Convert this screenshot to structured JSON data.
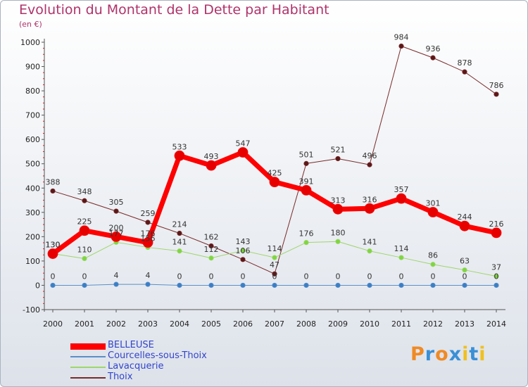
{
  "title": "Evolution du Montant de la Dette par Habitant",
  "subtitle": "(en €)",
  "logo": {
    "letters": [
      "P",
      "r",
      "o",
      "x",
      "i",
      "t",
      "i"
    ],
    "colors": [
      "#f08a24",
      "#3a8fd6",
      "#f08a24",
      "#3a8fd6",
      "#f0c020",
      "#3a8fd6",
      "#f0c020"
    ]
  },
  "chart_data": {
    "type": "line",
    "x": [
      "2000",
      "2001",
      "2002",
      "2003",
      "2004",
      "2005",
      "2006",
      "2007",
      "2008",
      "2009",
      "2010",
      "2011",
      "2012",
      "2013",
      "2014"
    ],
    "ylim": [
      -100,
      1000
    ],
    "yticks": [
      -100,
      0,
      100,
      200,
      300,
      400,
      500,
      600,
      700,
      800,
      900,
      1000
    ],
    "series": [
      {
        "name": "Thoix",
        "color": "#7a2a2a",
        "marker": "#5a1818",
        "width": 1,
        "r": 3.2,
        "values": [
          388,
          348,
          305,
          259,
          214,
          162,
          106,
          47,
          501,
          521,
          496,
          984,
          936,
          878,
          786
        ]
      },
      {
        "name": "Lavacquerie",
        "color": "#9ed66a",
        "marker": "#7ed640",
        "width": 1,
        "r": 3.2,
        "values": [
          130,
          110,
          177,
          156,
          141,
          112,
          143,
          114,
          176,
          180,
          141,
          114,
          86,
          63,
          37
        ]
      },
      {
        "name": "Courcelles-sous-Thoix",
        "color": "#5b8ec8",
        "marker": "#3a7fc6",
        "width": 1,
        "r": 3.2,
        "values": [
          0,
          0,
          4,
          4,
          0,
          0,
          0,
          0,
          0,
          0,
          0,
          0,
          0,
          0,
          0
        ]
      },
      {
        "name": "BELLEUSE",
        "color": "#ff0000",
        "marker": "#e60000",
        "width": 7,
        "r": 7,
        "values": [
          130,
          225,
          200,
          176,
          533,
          493,
          547,
          425,
          391,
          313,
          316,
          357,
          301,
          244,
          216
        ]
      }
    ],
    "legend_order": [
      "BELLEUSE",
      "Courcelles-sous-Thoix",
      "Lavacquerie",
      "Thoix"
    ],
    "grid": false,
    "legend": "bottom-left"
  }
}
